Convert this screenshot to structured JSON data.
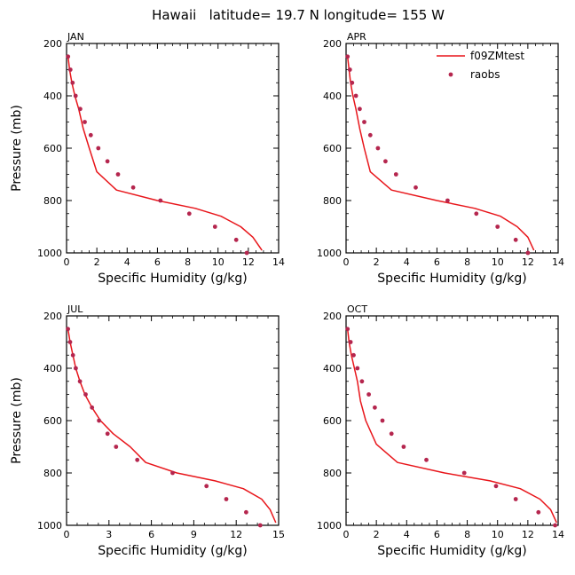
{
  "title": "Hawaii   latitude= 19.7 N longitude= 155 W",
  "legend": {
    "model_label": "f09ZMtest",
    "obs_label": "raobs"
  },
  "colors": {
    "model_line": "#e8161b",
    "obs_marker": "#b5264e",
    "axis": "#000000"
  },
  "chart_data": [
    {
      "type": "line",
      "panel": "JAN",
      "xlabel": "Specific Humidity (g/kg)",
      "ylabel": "Pressure (mb)",
      "xlim": [
        0,
        14
      ],
      "ylim": [
        200,
        1000
      ],
      "xticks": [
        0,
        2,
        4,
        6,
        8,
        10,
        12,
        14
      ],
      "yticks": [
        200,
        400,
        600,
        800,
        1000
      ],
      "legend": false,
      "series": [
        {
          "name": "f09ZMtest",
          "kind": "line",
          "x": [
            0.1,
            0.2,
            0.35,
            0.55,
            0.8,
            1.1,
            1.5,
            2.0,
            3.3,
            6.0,
            8.5,
            10.2,
            11.5,
            12.3,
            12.9
          ],
          "y": [
            250,
            300,
            350,
            400,
            450,
            525,
            600,
            690,
            760,
            800,
            830,
            860,
            900,
            940,
            990
          ]
        },
        {
          "name": "raobs",
          "kind": "scatter",
          "x": [
            0.1,
            0.25,
            0.4,
            0.6,
            0.9,
            1.2,
            1.6,
            2.1,
            2.7,
            3.4,
            4.4,
            6.2,
            8.1,
            9.8,
            11.2,
            11.9
          ],
          "y": [
            250,
            300,
            350,
            400,
            450,
            500,
            550,
            600,
            650,
            700,
            750,
            800,
            850,
            900,
            950,
            1000
          ]
        }
      ]
    },
    {
      "type": "line",
      "panel": "APR",
      "xlabel": "Specific Humidity (g/kg)",
      "ylabel": "",
      "xlim": [
        0,
        14
      ],
      "ylim": [
        200,
        1000
      ],
      "xticks": [
        0,
        2,
        4,
        6,
        8,
        10,
        12,
        14
      ],
      "yticks": [
        200,
        400,
        600,
        800,
        1000
      ],
      "legend": true,
      "series": [
        {
          "name": "f09ZMtest",
          "kind": "line",
          "x": [
            0.1,
            0.2,
            0.3,
            0.45,
            0.65,
            0.9,
            1.2,
            1.6,
            3.0,
            6.0,
            8.5,
            10.2,
            11.3,
            12.0,
            12.4
          ],
          "y": [
            250,
            300,
            350,
            400,
            450,
            525,
            600,
            690,
            760,
            800,
            830,
            860,
            900,
            940,
            990
          ]
        },
        {
          "name": "raobs",
          "kind": "scatter",
          "x": [
            0.1,
            0.25,
            0.4,
            0.65,
            0.9,
            1.2,
            1.6,
            2.1,
            2.6,
            3.3,
            4.6,
            6.7,
            8.6,
            10.0,
            11.2,
            12.0
          ],
          "y": [
            250,
            300,
            350,
            400,
            450,
            500,
            550,
            600,
            650,
            700,
            750,
            800,
            850,
            900,
            950,
            1000
          ]
        }
      ]
    },
    {
      "type": "line",
      "panel": "JUL",
      "xlabel": "Specific Humidity (g/kg)",
      "ylabel": "Pressure (mb)",
      "xlim": [
        0,
        15
      ],
      "ylim": [
        200,
        1000
      ],
      "xticks": [
        0,
        3,
        6,
        9,
        12,
        15
      ],
      "yticks": [
        200,
        400,
        600,
        800,
        1000
      ],
      "legend": false,
      "series": [
        {
          "name": "f09ZMtest",
          "kind": "line",
          "x": [
            0.1,
            0.25,
            0.45,
            0.65,
            0.95,
            1.3,
            1.8,
            2.4,
            3.3,
            4.5,
            5.6,
            7.8,
            10.5,
            12.5,
            13.8,
            14.4,
            14.8
          ],
          "y": [
            250,
            300,
            350,
            400,
            450,
            500,
            550,
            600,
            650,
            700,
            760,
            800,
            830,
            860,
            900,
            940,
            990
          ]
        },
        {
          "name": "raobs",
          "kind": "scatter",
          "x": [
            0.1,
            0.25,
            0.45,
            0.65,
            0.95,
            1.35,
            1.8,
            2.3,
            2.9,
            3.5,
            5.0,
            7.5,
            9.9,
            11.3,
            12.7,
            13.7
          ],
          "y": [
            250,
            300,
            350,
            400,
            450,
            500,
            550,
            600,
            650,
            700,
            750,
            800,
            850,
            900,
            950,
            1000
          ]
        }
      ]
    },
    {
      "type": "line",
      "panel": "OCT",
      "xlabel": "Specific Humidity (g/kg)",
      "ylabel": "",
      "xlim": [
        0,
        14
      ],
      "ylim": [
        200,
        1000
      ],
      "xticks": [
        0,
        2,
        4,
        6,
        8,
        10,
        12,
        14
      ],
      "yticks": [
        200,
        400,
        600,
        800,
        1000
      ],
      "legend": false,
      "series": [
        {
          "name": "f09ZMtest",
          "kind": "line",
          "x": [
            0.1,
            0.2,
            0.35,
            0.55,
            0.75,
            0.95,
            1.3,
            2.0,
            3.4,
            6.5,
            9.5,
            11.5,
            12.8,
            13.5,
            13.9
          ],
          "y": [
            250,
            300,
            350,
            400,
            450,
            525,
            600,
            690,
            760,
            800,
            830,
            860,
            900,
            940,
            990
          ]
        },
        {
          "name": "raobs",
          "kind": "scatter",
          "x": [
            0.1,
            0.3,
            0.5,
            0.75,
            1.05,
            1.5,
            1.9,
            2.4,
            3.0,
            3.8,
            5.3,
            7.8,
            9.9,
            11.2,
            12.7,
            13.8
          ],
          "y": [
            250,
            300,
            350,
            400,
            450,
            500,
            550,
            600,
            650,
            700,
            750,
            800,
            850,
            900,
            950,
            1000
          ]
        }
      ]
    }
  ]
}
